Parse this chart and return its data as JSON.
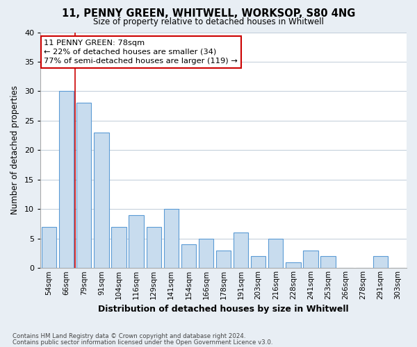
{
  "title": "11, PENNY GREEN, WHITWELL, WORKSOP, S80 4NG",
  "subtitle": "Size of property relative to detached houses in Whitwell",
  "xlabel": "Distribution of detached houses by size in Whitwell",
  "ylabel": "Number of detached properties",
  "bar_labels": [
    "54sqm",
    "66sqm",
    "79sqm",
    "91sqm",
    "104sqm",
    "116sqm",
    "129sqm",
    "141sqm",
    "154sqm",
    "166sqm",
    "178sqm",
    "191sqm",
    "203sqm",
    "216sqm",
    "228sqm",
    "241sqm",
    "253sqm",
    "266sqm",
    "278sqm",
    "291sqm",
    "303sqm"
  ],
  "bar_values": [
    7,
    30,
    28,
    23,
    7,
    9,
    7,
    10,
    4,
    5,
    3,
    6,
    2,
    5,
    1,
    3,
    2,
    0,
    0,
    2,
    0
  ],
  "bar_color": "#c8dcee",
  "bar_edge_color": "#5b9bd5",
  "red_line_x": 1.5,
  "annotation_text": "11 PENNY GREEN: 78sqm\n← 22% of detached houses are smaller (34)\n77% of semi-detached houses are larger (119) →",
  "annotation_box_facecolor": "#ffffff",
  "annotation_border_color": "#cc0000",
  "ylim": [
    0,
    40
  ],
  "yticks": [
    0,
    5,
    10,
    15,
    20,
    25,
    30,
    35,
    40
  ],
  "footnote1": "Contains HM Land Registry data © Crown copyright and database right 2024.",
  "footnote2": "Contains public sector information licensed under the Open Government Licence v3.0.",
  "bg_color": "#e8eef4",
  "plot_bg_color": "#ffffff",
  "grid_color": "#c0ccd8"
}
